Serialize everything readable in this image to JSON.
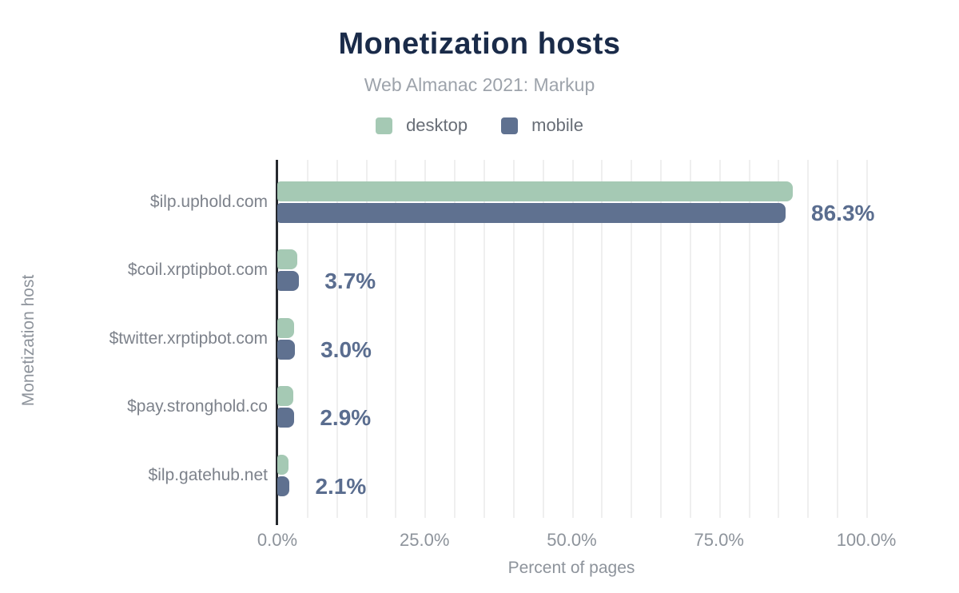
{
  "chart_data": {
    "type": "bar",
    "orientation": "horizontal",
    "title": "Monetization hosts",
    "subtitle": "Web Almanac 2021: Markup",
    "xlabel": "Percent of pages",
    "ylabel": "Monetization host",
    "categories": [
      "$ilp.uphold.com",
      "$coil.xrptipbot.com",
      "$twitter.xrptipbot.com",
      "$pay.stronghold.co",
      "$ilp.gatehub.net"
    ],
    "series": [
      {
        "name": "desktop",
        "color": "#a5c9b4",
        "values": [
          87.5,
          3.4,
          2.9,
          2.7,
          1.9
        ]
      },
      {
        "name": "mobile",
        "color": "#5f7190",
        "values": [
          86.3,
          3.7,
          3.0,
          2.9,
          2.1
        ]
      }
    ],
    "value_labels": {
      "series": "mobile",
      "labels": [
        "86.3%",
        "3.7%",
        "3.0%",
        "2.9%",
        "2.1%"
      ]
    },
    "x_ticks": [
      {
        "value": 0,
        "label": "0.0%"
      },
      {
        "value": 25,
        "label": "25.0%"
      },
      {
        "value": 50,
        "label": "50.0%"
      },
      {
        "value": 75,
        "label": "75.0%"
      },
      {
        "value": 100,
        "label": "100.0%"
      }
    ],
    "xlim": [
      0,
      100
    ],
    "gridlines": {
      "step": 5,
      "max": 100
    },
    "legend_position": "top"
  },
  "colors": {
    "title": "#1a2b49",
    "subtitle": "#9da3ab",
    "desktop_bar": "#a5c9b4",
    "mobile_bar": "#5f7190",
    "value_label": "#5a6d8f",
    "axis_text": "#8d939b",
    "category_text": "#7d828b",
    "axis_line": "#26292e",
    "gridline": "#efefef",
    "background": "#ffffff"
  }
}
